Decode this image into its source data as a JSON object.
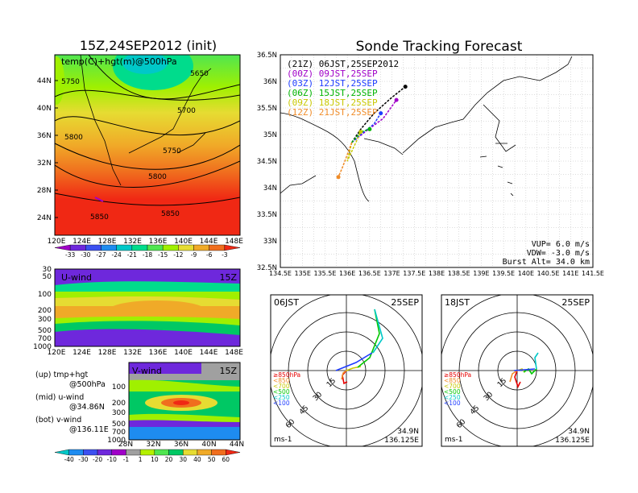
{
  "left": {
    "title": "15Z,24SEP2012 (init)",
    "map": {
      "label": "temp(C)+hgt(m)@500hPa",
      "lon_ticks": [
        "120E",
        "124E",
        "128E",
        "132E",
        "136E",
        "140E",
        "144E",
        "148E"
      ],
      "lat_ticks": [
        "44N",
        "40N",
        "36N",
        "32N",
        "28N",
        "24N"
      ],
      "contours": [
        "5650",
        "5700",
        "5750",
        "5750",
        "5800",
        "5800",
        "5850",
        "5850"
      ],
      "contour_labels_shown": [
        "5750",
        "5650",
        "5700",
        "5800",
        "5750",
        "5800",
        "5850",
        "5850"
      ],
      "colorbar_labels": [
        "-33",
        "-30",
        "-27",
        "-24",
        "-21",
        "-18",
        "-15",
        "-12",
        "-9",
        "-6",
        "-3"
      ],
      "colorbar_colors": [
        "#a000c8",
        "#6e28dc",
        "#3c50f0",
        "#1e8cf0",
        "#00c8c8",
        "#00dc8c",
        "#50e650",
        "#a0f000",
        "#e6dc32",
        "#f0aa28",
        "#f06e1e",
        "#f02814"
      ]
    },
    "uwind": {
      "label": "U-wind",
      "time": "15Z",
      "p_ticks": [
        "30",
        "50",
        "100",
        "200",
        "300",
        "500",
        "700",
        "1000"
      ],
      "lon_ticks": [
        "120E",
        "124E",
        "128E",
        "132E",
        "136E",
        "140E",
        "144E",
        "148E"
      ]
    },
    "vwind": {
      "label": "V-wind",
      "time": "15Z",
      "p_ticks": [
        "100",
        "200",
        "300",
        "500",
        "700",
        "1000"
      ],
      "lat_ticks": [
        "28N",
        "32N",
        "36N",
        "40N",
        "44N"
      ]
    },
    "legend": [
      {
        "tag": "(up) tmp+hgt",
        "sub": "@500hPa"
      },
      {
        "tag": "(mid) u-wind",
        "sub": "@34.86N"
      },
      {
        "tag": "(bot) v-wind",
        "sub": "@136.11E"
      }
    ],
    "wind_colorbar_labels": [
      "-40",
      "-30",
      "-20",
      "-10",
      "-1",
      "1",
      "10",
      "20",
      "30",
      "40",
      "50",
      "60"
    ],
    "wind_colorbar_colors": [
      "#00c8c8",
      "#1e8cf0",
      "#3c50f0",
      "#6e28dc",
      "#a000c8",
      "#a0a0a0",
      "#b4f000",
      "#50e650",
      "#00c864",
      "#e6dc32",
      "#f0aa28",
      "#f06e1e",
      "#f02814"
    ]
  },
  "right": {
    "title": "Sonde Tracking Forecast",
    "tracks": {
      "lat_ticks": [
        "36.5N",
        "36N",
        "35.5N",
        "35N",
        "34.5N",
        "34N",
        "33.5N",
        "33N",
        "32.5N"
      ],
      "lon_ticks": [
        "134.5E",
        "135E",
        "135.5E",
        "136E",
        "136.5E",
        "137E",
        "137.5E",
        "138E",
        "138.5E",
        "139E",
        "139.5E",
        "140E",
        "140.5E",
        "141E",
        "141.5E"
      ],
      "legend": [
        {
          "text": "(21Z) 06JST,25SEP2012",
          "color": "#000000"
        },
        {
          "text": "(00Z) 09JST,25SEP",
          "color": "#a000c8"
        },
        {
          "text": "(03Z) 12JST,25SEP",
          "color": "#1e3cff"
        },
        {
          "text": "(06Z) 15JST,25SEP",
          "color": "#00b400"
        },
        {
          "text": "(09Z) 18JST,25SEP",
          "color": "#c8c800"
        },
        {
          "text": "(12Z) 21JST,25SEP",
          "color": "#f08c28"
        }
      ],
      "params": [
        "VUP= 6.0 m/s",
        "VDW= -3.0 m/s",
        "Burst Alt= 34.0 km"
      ]
    },
    "hodo_left": {
      "time": "06JST",
      "date": "25SEP",
      "rings": [
        "15",
        "30",
        "45",
        "60"
      ],
      "levels": [
        {
          "text": "≥850hPa",
          "color": "#e60000"
        },
        {
          "text": "<850",
          "color": "#f08c28"
        },
        {
          "text": "<700",
          "color": "#c8c800"
        },
        {
          "text": "<500",
          "color": "#00c800"
        },
        {
          "text": "<250",
          "color": "#00c8c8"
        },
        {
          "text": "<100",
          "color": "#1e3cff"
        }
      ],
      "unit": "ms-1",
      "lat": "34.9N",
      "lon": "136.125E"
    },
    "hodo_right": {
      "time": "18JST",
      "date": "25SEP",
      "rings": [
        "15",
        "30",
        "45",
        "60"
      ],
      "levels": [
        {
          "text": "≥850hPa",
          "color": "#e60000"
        },
        {
          "text": "<850",
          "color": "#f08c28"
        },
        {
          "text": "<700",
          "color": "#c8c800"
        },
        {
          "text": "<500",
          "color": "#00c800"
        },
        {
          "text": "<250",
          "color": "#00c8c8"
        },
        {
          "text": "<100",
          "color": "#1e3cff"
        }
      ],
      "unit": "ms-1",
      "lat": "34.9N",
      "lon": "136.125E"
    }
  },
  "chart_data": [
    {
      "type": "heatmap",
      "title": "15Z,24SEP2012 (init)",
      "subtitle": "temp(C)+hgt(m)@500hPa",
      "xlim": [
        120,
        150
      ],
      "ylim": [
        21,
        47
      ],
      "contour_levels": [
        5650,
        5700,
        5750,
        5800,
        5850
      ]
    },
    {
      "type": "heatmap",
      "title": "U-wind",
      "xlim": [
        120,
        150
      ],
      "ylim": [
        1000,
        30
      ]
    },
    {
      "type": "heatmap",
      "title": "V-wind",
      "xlim": [
        28,
        44
      ],
      "ylim": [
        1000,
        100
      ]
    },
    {
      "type": "line",
      "title": "Sonde Tracking Forecast",
      "xlim": [
        134.5,
        141.5
      ],
      "ylim": [
        32.5,
        36.5
      ],
      "series": [
        {
          "name": "(21Z) 06JST,25SEP2012",
          "x": [
            136.1,
            136.3,
            136.6,
            137.0,
            137.3
          ],
          "y": [
            34.85,
            35.1,
            35.4,
            35.7,
            35.9
          ]
        },
        {
          "name": "(00Z) 09JST,25SEP",
          "x": [
            136.1,
            136.4,
            136.8,
            137.1
          ],
          "y": [
            34.85,
            35.05,
            35.3,
            35.65
          ]
        },
        {
          "name": "(03Z) 12JST,25SEP",
          "x": [
            136.1,
            136.3,
            136.6,
            136.75
          ],
          "y": [
            34.85,
            35.0,
            35.2,
            35.4
          ]
        },
        {
          "name": "(06Z) 15JST,25SEP",
          "x": [
            136.1,
            136.3,
            136.5
          ],
          "y": [
            34.85,
            35.05,
            35.1
          ]
        },
        {
          "name": "(09Z) 18JST,25SEP",
          "x": [
            136.1,
            136.0,
            136.3
          ],
          "y": [
            34.85,
            34.5,
            35.05
          ]
        },
        {
          "name": "(12Z) 21JST,25SEP",
          "x": [
            136.1,
            135.9,
            135.8
          ],
          "y": [
            34.85,
            34.4,
            34.2
          ]
        }
      ]
    }
  ]
}
